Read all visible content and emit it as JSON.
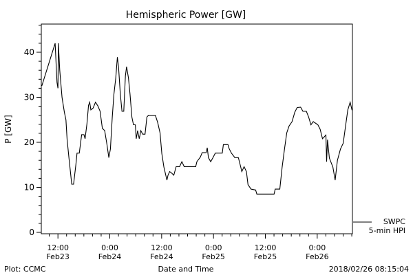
{
  "chart_data": {
    "type": "line",
    "title": "Hemispheric Power [GW]",
    "xlabel": "Date and Time",
    "ylabel": "P [GW]",
    "x_units": "hours since 2018-02-23 00:00",
    "xlim": [
      8.15,
      80.15
    ],
    "ylim": [
      0,
      46.5
    ],
    "yticks": [
      0,
      10,
      20,
      30,
      40
    ],
    "ytick_labels": [
      "0",
      "10",
      "20",
      "30",
      "40"
    ],
    "xticks": [
      {
        "x": 12,
        "time": "12:00",
        "date": "Feb23"
      },
      {
        "x": 24,
        "time": "0:00",
        "date": "Feb24"
      },
      {
        "x": 36,
        "time": "12:00",
        "date": "Feb24"
      },
      {
        "x": 48,
        "time": "0:00",
        "date": "Feb25"
      },
      {
        "x": 60,
        "time": "12:00",
        "date": "Feb25"
      },
      {
        "x": 72,
        "time": "0:00",
        "date": "Feb26"
      }
    ],
    "grid": false,
    "legend": {
      "position": "bottom-right",
      "entries": [
        "SWPC",
        "5-min HPI"
      ]
    },
    "series": [
      {
        "name": "SWPC 5-min HPI",
        "color": "#000000",
        "x": [
          8.26,
          11.35,
          11.78,
          12.0,
          12.1,
          12.42,
          12.95,
          13.48,
          13.86,
          14.12,
          14.55,
          15.19,
          15.62,
          16.15,
          16.42,
          16.95,
          17.48,
          18.02,
          18.28,
          18.71,
          19.08,
          19.35,
          19.62,
          20.15,
          20.68,
          21.22,
          21.75,
          22.28,
          22.82,
          23.35,
          23.78,
          24.15,
          24.58,
          24.95,
          25.38,
          25.75,
          26.02,
          26.44,
          26.82,
          27.24,
          27.62,
          27.88,
          28.31,
          28.68,
          29.11,
          29.48,
          29.91,
          30.12,
          30.44,
          30.82,
          31.19,
          31.62,
          32.15,
          32.58,
          32.95,
          34.55,
          35.08,
          35.62,
          36.04,
          36.52,
          37.22,
          37.48,
          37.86,
          38.28,
          38.82,
          39.35,
          40.15,
          40.68,
          41.22,
          43.88,
          44.15,
          44.95,
          45.38,
          46.28,
          46.55,
          46.82,
          47.35,
          47.88,
          48.42,
          50.02,
          50.28,
          51.35,
          51.62,
          52.15,
          52.95,
          53.75,
          54.28,
          54.55,
          55.08,
          55.62,
          55.99,
          56.68,
          57.75,
          58.02,
          62.02,
          62.28,
          63.35,
          63.88,
          64.42,
          64.95,
          65.48,
          66.18,
          66.82,
          67.35,
          68.15,
          68.68,
          69.48,
          70.02,
          70.55,
          71.08,
          72.15,
          72.68,
          73.22,
          74.02,
          74.18,
          74.39,
          74.82,
          75.62,
          76.15,
          76.68,
          77.38,
          78.02,
          78.55,
          79.08,
          79.62,
          80.04,
          80.15
        ],
        "y": [
          32.5,
          42,
          33.3,
          32,
          42,
          36,
          30,
          26.7,
          25,
          20.6,
          16.5,
          10.7,
          10.7,
          15,
          17.6,
          17.6,
          21.7,
          21.7,
          20.8,
          24.1,
          28.2,
          28.9,
          27.2,
          27.6,
          28.9,
          28.1,
          26.9,
          23.1,
          22.6,
          19.5,
          16.6,
          18.5,
          25.6,
          30.7,
          34.3,
          38.9,
          36.8,
          30.7,
          26.9,
          26.9,
          34.8,
          36.8,
          34.3,
          30.7,
          25.6,
          23.9,
          23.9,
          20.8,
          22.6,
          20.8,
          22.6,
          21.8,
          21.8,
          25.6,
          26,
          26,
          24.4,
          22.1,
          17.5,
          14.5,
          11.6,
          12.7,
          13.5,
          13.2,
          12.7,
          14.6,
          14.6,
          15.7,
          14.6,
          14.6,
          15.7,
          16.7,
          17.7,
          17.7,
          18.8,
          16.6,
          15.7,
          16.6,
          17.6,
          17.6,
          19.5,
          19.5,
          18.6,
          17.6,
          16.6,
          16.6,
          14.6,
          13.5,
          14.6,
          13.5,
          10.6,
          9.6,
          9.4,
          8.5,
          8.5,
          9.6,
          9.6,
          14.5,
          18.5,
          22.1,
          23.6,
          24.6,
          26.7,
          27.7,
          27.8,
          26.9,
          26.9,
          25.6,
          23.9,
          24.6,
          23.9,
          22.9,
          20.8,
          21.6,
          15.7,
          20.6,
          16.5,
          14.5,
          11.6,
          16,
          18.5,
          19.8,
          23.6,
          27.2,
          28.9,
          27.2,
          27.2
        ]
      }
    ]
  },
  "footer": {
    "left": "Plot: CCMC",
    "right": "2018/02/26 08:15:04"
  }
}
